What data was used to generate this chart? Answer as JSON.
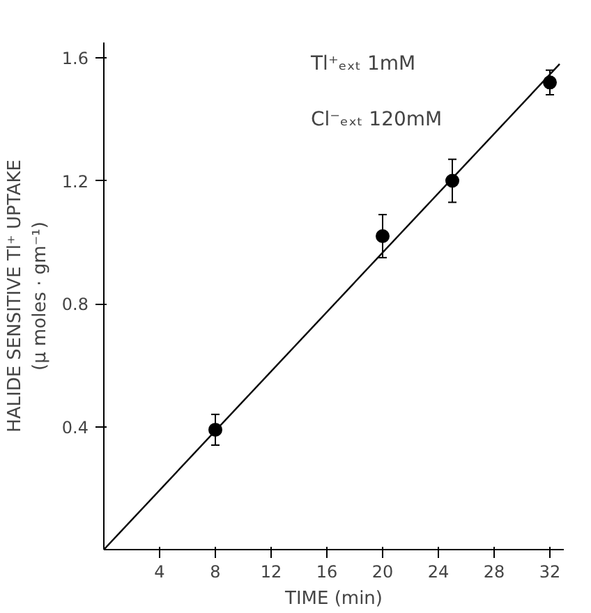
{
  "chart_data": {
    "type": "scatter",
    "xlabel": "TIME (min)",
    "ylabel": "HALIDE SENSITIVE Tl⁺ UPTAKE\n(μ moles · gm⁻¹)",
    "annotations": [
      "Tl⁺ₑₓₜ  1mM",
      "Cl⁻ₑₓₜ  120mM"
    ],
    "xlim": [
      0,
      33
    ],
    "ylim": [
      0,
      1.65
    ],
    "xticks": [
      4,
      8,
      12,
      16,
      20,
      24,
      28,
      32
    ],
    "yticks": [
      0.4,
      0.8,
      1.2,
      1.6
    ],
    "grid": false,
    "marker": "circle",
    "series": [
      {
        "color": "#000000",
        "x": [
          8,
          20,
          25,
          32
        ],
        "values": [
          0.39,
          1.02,
          1.2,
          1.52
        ],
        "errors": [
          0.05,
          0.07,
          0.07,
          0.04
        ]
      },
      {
        "type": "line",
        "color": "#000000",
        "x": [
          0,
          32.7
        ],
        "values": [
          0,
          1.58
        ],
        "marker": "none",
        "line_style": "solid"
      }
    ]
  }
}
